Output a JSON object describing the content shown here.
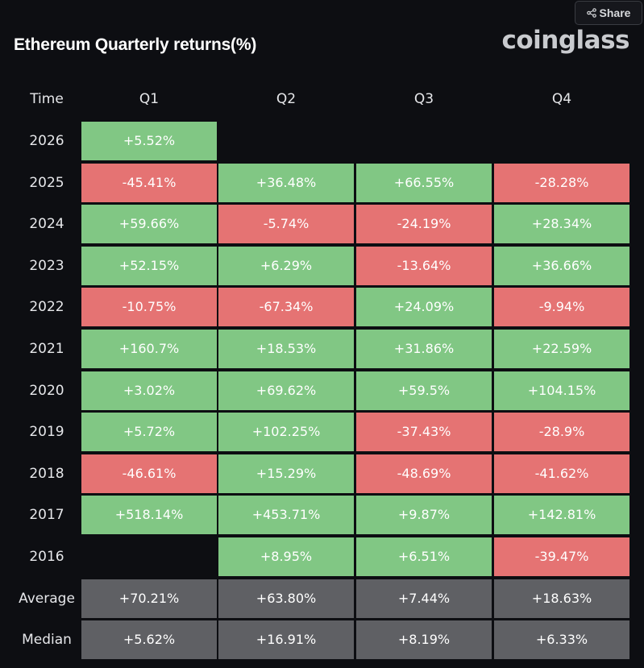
{
  "header": {
    "share_label": "Share",
    "title": "Ethereum Quarterly returns(%)",
    "brand": "coinglass"
  },
  "colors": {
    "background": "#0d0e12",
    "positive": "#81c784",
    "negative": "#e57373",
    "summary": "#5f6064"
  },
  "chart_data": {
    "type": "table",
    "title": "Ethereum Quarterly returns(%)",
    "row_header_label": "Time",
    "columns": [
      "Q1",
      "Q2",
      "Q3",
      "Q4"
    ],
    "rows": [
      {
        "label": "2026",
        "values": [
          "+5.52%",
          "",
          "",
          ""
        ]
      },
      {
        "label": "2025",
        "values": [
          "-45.41%",
          "+36.48%",
          "+66.55%",
          "-28.28%"
        ]
      },
      {
        "label": "2024",
        "values": [
          "+59.66%",
          "-5.74%",
          "-24.19%",
          "+28.34%"
        ]
      },
      {
        "label": "2023",
        "values": [
          "+52.15%",
          "+6.29%",
          "-13.64%",
          "+36.66%"
        ]
      },
      {
        "label": "2022",
        "values": [
          "-10.75%",
          "-67.34%",
          "+24.09%",
          "-9.94%"
        ]
      },
      {
        "label": "2021",
        "values": [
          "+160.7%",
          "+18.53%",
          "+31.86%",
          "+22.59%"
        ]
      },
      {
        "label": "2020",
        "values": [
          "+3.02%",
          "+69.62%",
          "+59.5%",
          "+104.15%"
        ]
      },
      {
        "label": "2019",
        "values": [
          "+5.72%",
          "+102.25%",
          "-37.43%",
          "-28.9%"
        ]
      },
      {
        "label": "2018",
        "values": [
          "-46.61%",
          "+15.29%",
          "-48.69%",
          "-41.62%"
        ]
      },
      {
        "label": "2017",
        "values": [
          "+518.14%",
          "+453.71%",
          "+9.87%",
          "+142.81%"
        ]
      },
      {
        "label": "2016",
        "values": [
          "",
          "+8.95%",
          "+6.51%",
          "-39.47%"
        ]
      }
    ],
    "summary": [
      {
        "label": "Average",
        "values": [
          "+70.21%",
          "+63.80%",
          "+7.44%",
          "+18.63%"
        ]
      },
      {
        "label": "Median",
        "values": [
          "+5.62%",
          "+16.91%",
          "+8.19%",
          "+6.33%"
        ]
      }
    ]
  }
}
